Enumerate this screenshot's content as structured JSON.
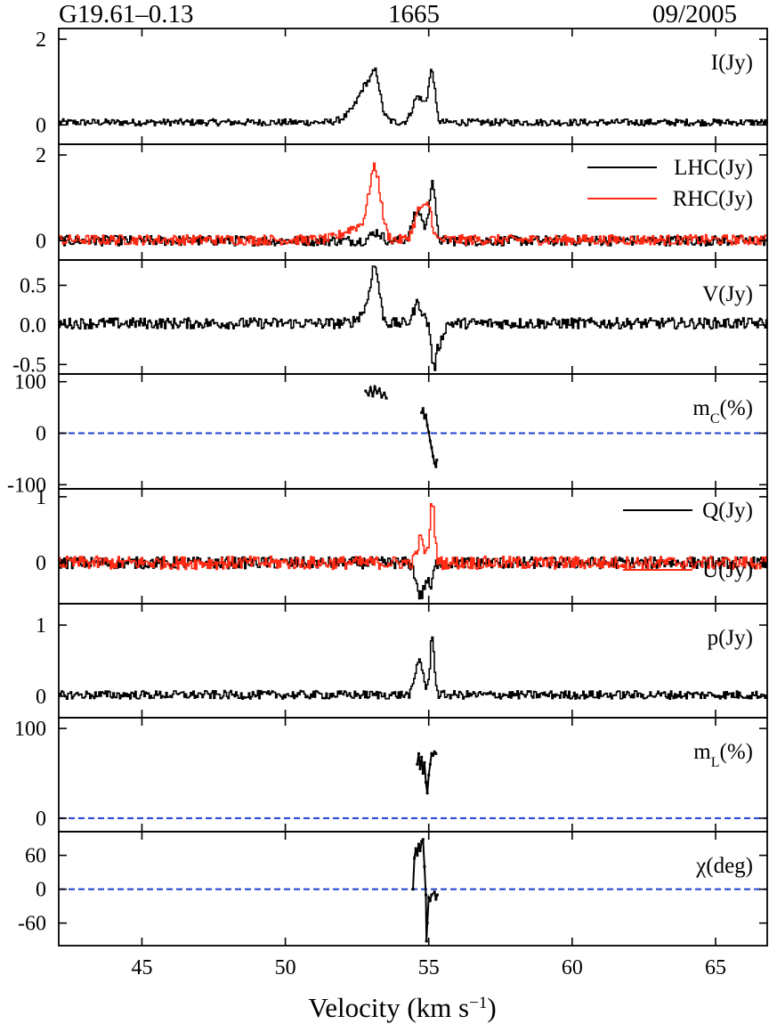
{
  "header": {
    "source": "G19.61–0.13",
    "line": "1665",
    "epoch": "09/2005"
  },
  "chart_data": {
    "type": "line",
    "x_label_main": "Velocity (km s",
    "x_label_sup": "−1",
    "x_label_close": ")",
    "x_range": [
      42.1,
      66.8
    ],
    "x_ticks": [
      "45",
      "50",
      "55",
      "60",
      "65"
    ],
    "x_tick_values": [
      45,
      50,
      55,
      60,
      65
    ],
    "panels": [
      {
        "id": "I",
        "label": "I(Jy)",
        "ylim": [
          -0.45,
          2.25
        ],
        "y_tick_values": [
          0,
          2
        ],
        "y_tick_labels": [
          "0",
          "2"
        ],
        "series": [
          {
            "color": "#000000",
            "noise": 0.08,
            "base": 0.06,
            "peaks": [
              [
                52.9,
                0.3,
                0.85
              ],
              [
                53.15,
                0.12,
                0.55
              ],
              [
                52.4,
                0.35,
                0.2
              ],
              [
                54.6,
                0.18,
                0.6
              ],
              [
                55.1,
                0.1,
                1.05
              ],
              [
                54.95,
                0.12,
                0.3
              ]
            ]
          }
        ]
      },
      {
        "id": "LR",
        "label": "",
        "ylim": [
          -0.45,
          2.25
        ],
        "y_tick_values": [
          0,
          2
        ],
        "y_tick_labels": [
          "0",
          "2"
        ],
        "legend": [
          {
            "label": "LHC(Jy)",
            "color": "#000000"
          },
          {
            "label": "RHC(Jy)",
            "color": "#ff2a14"
          }
        ],
        "series": [
          {
            "name": "LHC(Jy)",
            "color": "#000000",
            "noise": 0.12,
            "base": 0.0,
            "peaks": [
              [
                53.15,
                0.18,
                0.2
              ],
              [
                54.6,
                0.18,
                0.7
              ],
              [
                55.1,
                0.1,
                1.4
              ]
            ]
          },
          {
            "name": "RHC(Jy)",
            "color": "#ff2a14",
            "noise": 0.12,
            "base": 0.02,
            "peaks": [
              [
                53.1,
                0.2,
                1.55
              ],
              [
                52.5,
                0.45,
                0.3
              ],
              [
                54.7,
                0.2,
                0.75
              ],
              [
                55.0,
                0.1,
                0.55
              ]
            ]
          }
        ]
      },
      {
        "id": "V",
        "label": "V(Jy)",
        "ylim": [
          -0.62,
          0.82
        ],
        "y_tick_values": [
          0.5,
          0.0,
          -0.5
        ],
        "y_tick_labels": [
          "0.5",
          "0.0",
          "-0.5"
        ],
        "series": [
          {
            "color": "#000000",
            "noise": 0.07,
            "base": 0.02,
            "peaks": [
              [
                53.1,
                0.15,
                0.65
              ],
              [
                52.8,
                0.25,
                0.15
              ],
              [
                54.6,
                0.15,
                0.25
              ],
              [
                55.15,
                0.08,
                -0.5
              ],
              [
                55.35,
                0.12,
                -0.25
              ]
            ]
          }
        ]
      },
      {
        "id": "mc",
        "label": "m",
        "label_sub": "C",
        "label_tail": "(%)",
        "ylim": [
          -108,
          115
        ],
        "y_tick_values": [
          100,
          0,
          -100
        ],
        "y_tick_labels": [
          "100",
          "0",
          "-100"
        ],
        "zero_line": true,
        "segments": [
          {
            "color": "#000000",
            "points": [
              [
                52.8,
                82
              ],
              [
                52.9,
                74
              ],
              [
                52.97,
                88
              ],
              [
                53.05,
                72
              ],
              [
                53.12,
                90
              ],
              [
                53.2,
                78
              ],
              [
                53.28,
                86
              ],
              [
                53.36,
                70
              ],
              [
                53.45,
                78
              ],
              [
                53.52,
                68
              ]
            ]
          },
          {
            "color": "#000000",
            "points": [
              [
                54.75,
                40
              ],
              [
                54.8,
                48
              ],
              [
                54.85,
                30
              ],
              [
                54.9,
                35
              ],
              [
                54.95,
                15
              ],
              [
                55.0,
                2
              ],
              [
                55.05,
                -15
              ],
              [
                55.1,
                -28
              ],
              [
                55.15,
                -45
              ],
              [
                55.2,
                -58
              ],
              [
                55.25,
                -65
              ],
              [
                55.28,
                -52
              ]
            ]
          }
        ]
      },
      {
        "id": "QU",
        "label": "",
        "ylim": [
          -0.62,
          1.12
        ],
        "y_tick_values": [
          1,
          0
        ],
        "y_tick_labels": [
          "1",
          "0"
        ],
        "legend": [
          {
            "label": "Q(Jy)",
            "color": "#000000"
          },
          {
            "label": "U(Jy)",
            "color": "#ff2a14"
          }
        ],
        "series": [
          {
            "name": "Q(Jy)",
            "color": "#000000",
            "noise": 0.09,
            "base": 0.0,
            "peaks": [
              [
                54.7,
                0.15,
                -0.5
              ],
              [
                55.05,
                0.08,
                -0.35
              ]
            ]
          },
          {
            "name": "U(Jy)",
            "color": "#ff2a14",
            "noise": 0.1,
            "base": 0.0,
            "peaks": [
              [
                55.1,
                0.08,
                0.95
              ],
              [
                54.7,
                0.12,
                0.35
              ]
            ]
          }
        ]
      },
      {
        "id": "p",
        "label": "p(Jy)",
        "ylim": [
          -0.3,
          1.3
        ],
        "y_tick_values": [
          1,
          0
        ],
        "y_tick_labels": [
          "1",
          "0"
        ],
        "series": [
          {
            "color": "#000000",
            "noise": 0.06,
            "base": 0.02,
            "peaks": [
              [
                54.65,
                0.13,
                0.5
              ],
              [
                55.1,
                0.07,
                0.85
              ]
            ]
          }
        ]
      },
      {
        "id": "ml",
        "label": "m",
        "label_sub": "L",
        "label_tail": "(%)",
        "ylim": [
          -15,
          112
        ],
        "y_tick_values": [
          100,
          0
        ],
        "y_tick_labels": [
          "100",
          "0"
        ],
        "zero_line": true,
        "segments": [
          {
            "color": "#000000",
            "points": [
              [
                54.6,
                60
              ],
              [
                54.65,
                72
              ],
              [
                54.7,
                55
              ],
              [
                54.75,
                68
              ],
              [
                54.8,
                50
              ],
              [
                54.85,
                62
              ],
              [
                54.9,
                40
              ],
              [
                54.95,
                28
              ],
              [
                55.0,
                48
              ],
              [
                55.05,
                60
              ],
              [
                55.1,
                72
              ],
              [
                55.15,
                70
              ],
              [
                55.2,
                74
              ],
              [
                55.25,
                72
              ]
            ]
          }
        ]
      },
      {
        "id": "chi",
        "label": "χ(deg)",
        "ylim": [
          -100,
          102
        ],
        "y_tick_values": [
          60,
          0,
          -60
        ],
        "y_tick_labels": [
          "60",
          "0",
          "-60"
        ],
        "zero_line": true,
        "segments": [
          {
            "color": "#000000",
            "points": [
              [
                54.45,
                0
              ],
              [
                54.5,
                55
              ],
              [
                54.55,
                72
              ],
              [
                54.6,
                60
              ],
              [
                54.65,
                80
              ],
              [
                54.7,
                68
              ],
              [
                54.75,
                85
              ],
              [
                54.8,
                88
              ],
              [
                54.85,
                40
              ],
              [
                54.9,
                -10
              ],
              [
                54.92,
                -92
              ],
              [
                54.95,
                -60
              ],
              [
                55.0,
                -15
              ],
              [
                55.05,
                -20
              ],
              [
                55.1,
                -10
              ],
              [
                55.2,
                -5
              ],
              [
                55.25,
                -18
              ],
              [
                55.3,
                -10
              ]
            ]
          }
        ]
      }
    ]
  },
  "colors": {
    "zero_line": "#1f3fcf",
    "axis": "#000000"
  }
}
